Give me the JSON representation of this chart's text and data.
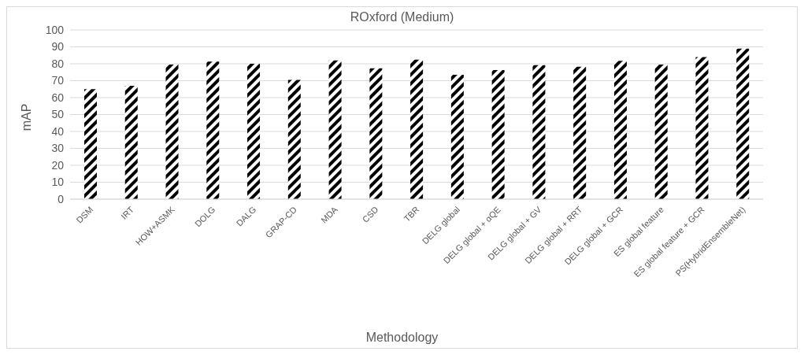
{
  "chart_data": {
    "type": "bar",
    "title": "ROxford (Medium)",
    "xlabel": "Methodology",
    "ylabel": "mAP",
    "categories": [
      "DSM",
      "IRT",
      "HOW+ASMK",
      "DOLG",
      "DALG",
      "GRAP-CD",
      "MDA",
      "CSD",
      "TBR",
      "DELG global",
      "DELG global + αQE",
      "DELG global + GV",
      "DELG global + RRT",
      "DELG global + GCR",
      "ES global feature",
      "ES global feature + GCR",
      "PS(HybridEnsembleNet)"
    ],
    "values": [
      65,
      67,
      79.5,
      81.3,
      80,
      70.5,
      82,
      77.3,
      82.5,
      73.5,
      76.3,
      79.2,
      78.3,
      81.8,
      79.5,
      84,
      89
    ],
    "color": "#000000",
    "ylim": [
      0,
      100
    ],
    "yticks": [
      0,
      10,
      20,
      30,
      40,
      50,
      60,
      70,
      80,
      90,
      100
    ],
    "grid": "y"
  }
}
